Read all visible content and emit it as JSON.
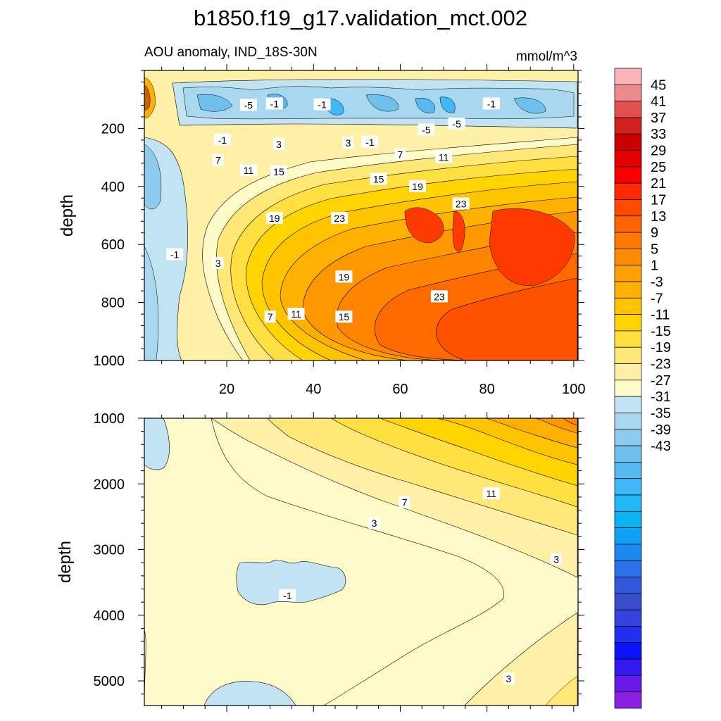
{
  "title": "b1850.f19_g17.validation_mct.002",
  "subtitle_left": "AOU anomaly, IND_18S-30N",
  "units": "mmol/m^3",
  "colorbar": {
    "labels": [
      "45",
      "41",
      "37",
      "33",
      "29",
      "25",
      "21",
      "17",
      "13",
      "9",
      "5",
      "1",
      "-3",
      "-7",
      "-11",
      "-15",
      "-19",
      "-23",
      "-27",
      "-31",
      "-35",
      "-39",
      "-43"
    ],
    "colors": [
      "#f8b4b8",
      "#ec8a8e",
      "#e05050",
      "#d02020",
      "#cc0000",
      "#e20000",
      "#f80000",
      "#ff2a00",
      "#ff4a00",
      "#ff6400",
      "#ff7800",
      "#ff8c00",
      "#ffa000",
      "#ffb000",
      "#ffc400",
      "#ffd400",
      "#ffe040",
      "#ffe878",
      "#fff0a8",
      "#fffac8",
      "#c2e4f2",
      "#a8d8f0",
      "#8ccaee",
      "#70c0ee",
      "#58b8f0",
      "#40b8f8",
      "#22b8f8",
      "#0ab2f2",
      "#10a0f4",
      "#1c88f0",
      "#2a70e8",
      "#3058d8",
      "#3a4ccc",
      "#3442e0",
      "#2030ee",
      "#0a14f8",
      "#3418f0",
      "#6818e8",
      "#8c20e0"
    ]
  },
  "chart_data": [
    {
      "type": "contour",
      "panel": "upper",
      "ylabel": "depth",
      "xticks": [
        "20",
        "40",
        "60",
        "80",
        "100"
      ],
      "yticks": [
        "200",
        "400",
        "600",
        "800",
        "1000"
      ],
      "xlim": [
        1,
        101
      ],
      "ylim": [
        1000,
        0
      ],
      "contour_labels": [
        {
          "text": "-5",
          "x": 25,
          "y": 120
        },
        {
          "text": "-1",
          "x": 31,
          "y": 115
        },
        {
          "text": "-1",
          "x": 42,
          "y": 118
        },
        {
          "text": "-1",
          "x": 81,
          "y": 115
        },
        {
          "text": "-5",
          "x": 73,
          "y": 185
        },
        {
          "text": "-5",
          "x": 66,
          "y": 205
        },
        {
          "text": "-1",
          "x": 19,
          "y": 240
        },
        {
          "text": "3",
          "x": 32,
          "y": 255
        },
        {
          "text": "3",
          "x": 48,
          "y": 250
        },
        {
          "text": "-1",
          "x": 53,
          "y": 247
        },
        {
          "text": "7",
          "x": 18,
          "y": 310
        },
        {
          "text": "7",
          "x": 60,
          "y": 290
        },
        {
          "text": "11",
          "x": 70,
          "y": 300
        },
        {
          "text": "11",
          "x": 25,
          "y": 345
        },
        {
          "text": "15",
          "x": 32,
          "y": 350
        },
        {
          "text": "15",
          "x": 55,
          "y": 375
        },
        {
          "text": "19",
          "x": 64,
          "y": 400
        },
        {
          "text": "23",
          "x": 74,
          "y": 460
        },
        {
          "text": "19",
          "x": 31,
          "y": 510
        },
        {
          "text": "23",
          "x": 46,
          "y": 510
        },
        {
          "text": "-1",
          "x": 8,
          "y": 635
        },
        {
          "text": "3",
          "x": 18,
          "y": 665
        },
        {
          "text": "19",
          "x": 47,
          "y": 712
        },
        {
          "text": "23",
          "x": 69,
          "y": 780
        },
        {
          "text": "11",
          "x": 36,
          "y": 840
        },
        {
          "text": "15",
          "x": 47,
          "y": 850
        },
        {
          "text": "7",
          "x": 30,
          "y": 850
        }
      ]
    },
    {
      "type": "contour",
      "panel": "lower",
      "ylabel": "depth",
      "yticks": [
        "1000",
        "2000",
        "3000",
        "4000",
        "5000"
      ],
      "xlim": [
        1,
        101
      ],
      "ylim": [
        5375,
        1000
      ],
      "contour_labels": [
        {
          "text": "11",
          "x": 81,
          "y": 2150
        },
        {
          "text": "7",
          "x": 61,
          "y": 2280
        },
        {
          "text": "3",
          "x": 54,
          "y": 2600
        },
        {
          "text": "3",
          "x": 96,
          "y": 3150
        },
        {
          "text": "-1",
          "x": 34,
          "y": 3700
        },
        {
          "text": "3",
          "x": 85,
          "y": 4970
        }
      ]
    }
  ]
}
